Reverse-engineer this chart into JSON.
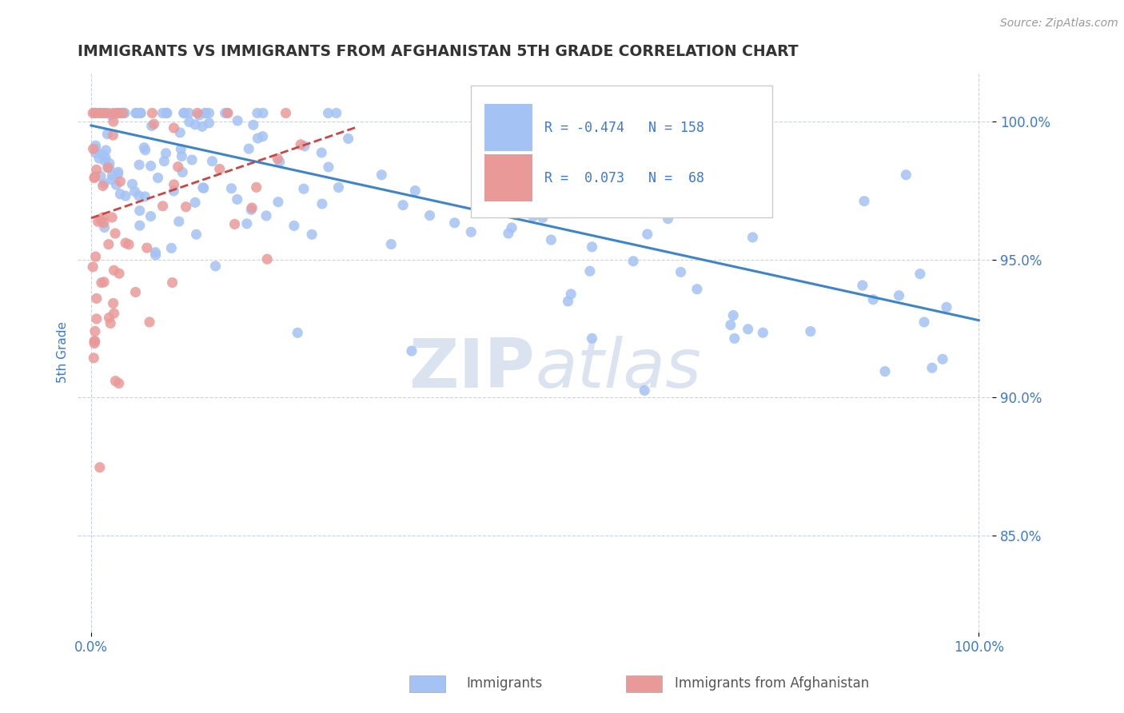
{
  "title": "IMMIGRANTS VS IMMIGRANTS FROM AFGHANISTAN 5TH GRADE CORRELATION CHART",
  "source": "Source: ZipAtlas.com",
  "ylabel": "5th Grade",
  "y_min": 0.815,
  "y_max": 1.018,
  "x_min": -0.015,
  "x_max": 1.015,
  "legend1_label": "Immigrants",
  "legend2_label": "Immigrants from Afghanistan",
  "R1": -0.474,
  "N1": 158,
  "R2": 0.073,
  "N2": 68,
  "blue_color": "#a4c2f4",
  "pink_color": "#ea9999",
  "blue_line_color": "#3d85c8",
  "pink_line_color": "#cc4444",
  "axis_label_color": "#3c78d8",
  "title_color": "#333333",
  "watermark_color": "#dce3f0",
  "blue_line_x0": 0.0,
  "blue_line_y0": 0.9985,
  "blue_line_x1": 1.0,
  "blue_line_y1": 0.928,
  "pink_line_x0": 0.0,
  "pink_line_y0": 0.965,
  "pink_line_x1": 0.3,
  "pink_line_y1": 0.998,
  "y_ticks": [
    0.85,
    0.9,
    0.95,
    1.0
  ],
  "y_tick_labels": [
    "85.0%",
    "90.0%",
    "95.0%",
    "100.0%"
  ],
  "x_ticks": [
    0.0,
    1.0
  ],
  "x_tick_labels": [
    "0.0%",
    "100.0%"
  ]
}
